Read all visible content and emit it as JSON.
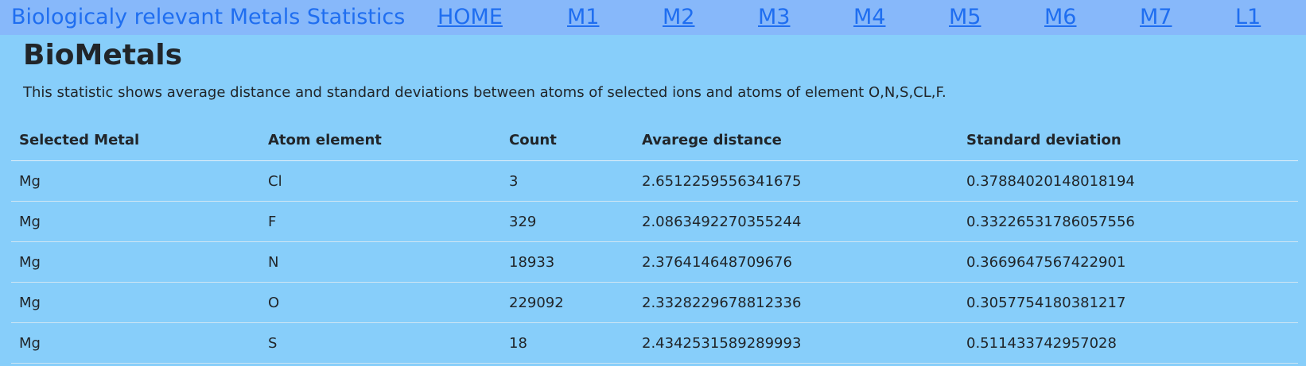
{
  "navbar": {
    "brand": "Biologicaly relevant Metals Statistics",
    "links": [
      "HOME",
      "M1",
      "M2",
      "M3",
      "M4",
      "M5",
      "M6",
      "M7",
      "L1"
    ]
  },
  "main": {
    "title": "BioMetals",
    "description": "This statistic shows average distance and standard deviations between atoms of selected ions and atoms of element O,N,S,CL,F."
  },
  "table": {
    "headers": [
      "Selected Metal",
      "Atom element",
      "Count",
      "Avarege distance",
      "Standard deviation"
    ],
    "rows": [
      [
        "Mg",
        "Cl",
        "3",
        "2.6512259556341675",
        "0.37884020148018194"
      ],
      [
        "Mg",
        "F",
        "329",
        "2.0863492270355244",
        "0.33226531786057556"
      ],
      [
        "Mg",
        "N",
        "18933",
        "2.376414648709676",
        "0.3669647567422901"
      ],
      [
        "Mg",
        "O",
        "229092",
        "2.3328229678812336",
        "0.3057754180381217"
      ],
      [
        "Mg",
        "S",
        "18",
        "2.4342531589289993",
        "0.511433742957028"
      ]
    ]
  },
  "colors": {
    "page_background": "#87cefa",
    "navbar_background": "#87b8fa",
    "link": "#1f6ef0",
    "text": "#212529"
  }
}
